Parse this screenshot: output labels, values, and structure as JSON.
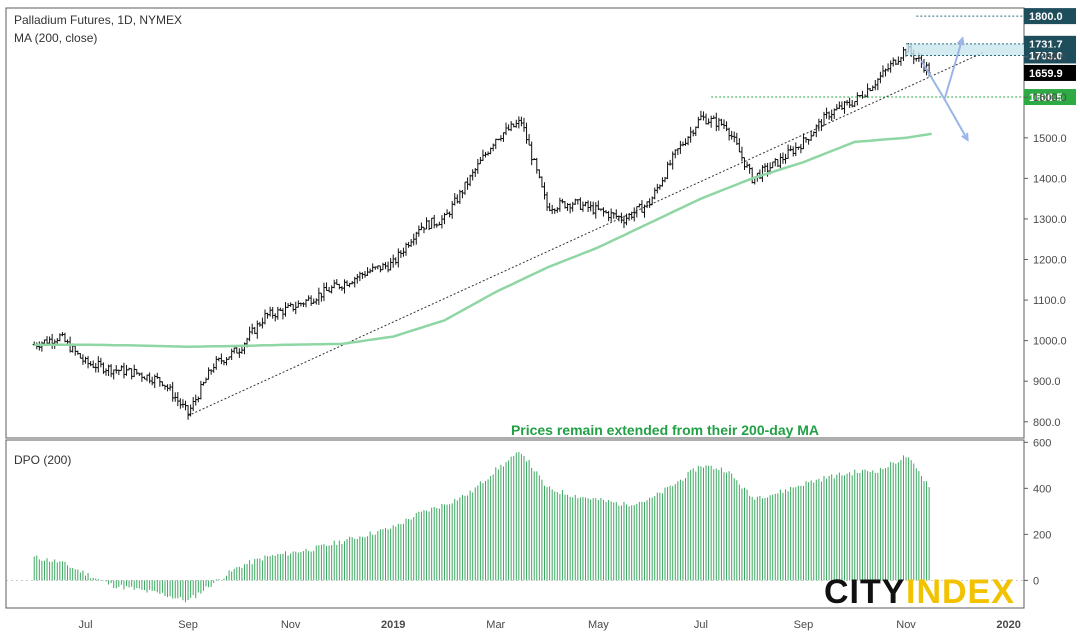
{
  "chart_data": {
    "type": "bar",
    "title": "Palladium Futures, 1D, NYMEX",
    "indicator_label": "MA (200, close)",
    "annotation": "Prices remain extended from their 200-day MA",
    "price_axis": {
      "range": [
        760,
        1820
      ],
      "ticks": [
        "800.0",
        "900.0",
        "1000.0",
        "1100.0",
        "1200.0",
        "1300.0",
        "1400.0",
        "1500.0",
        "1600.0",
        "1700.0"
      ],
      "tick_values": [
        800,
        900,
        1000,
        1100,
        1200,
        1300,
        1400,
        1500,
        1600,
        1700
      ]
    },
    "price_labels": [
      {
        "text": "1800.0",
        "value": 1800,
        "bg": "#1e4d5c"
      },
      {
        "text": "1731.7",
        "value": 1731.7,
        "bg": "#1e4d5c"
      },
      {
        "text": "1703.0",
        "value": 1703.0,
        "bg": "#1e4d5c"
      },
      {
        "text": "1659.9",
        "value": 1659.9,
        "bg": "#000000"
      },
      {
        "text": "1600.5",
        "value": 1600.5,
        "bg": "#2eaa45"
      }
    ],
    "time_axis": {
      "labels": [
        "Jul",
        "Sep",
        "Nov",
        "2019",
        "Mar",
        "May",
        "Jul",
        "Sep",
        "Nov",
        "2020"
      ],
      "months_from_jun2018": [
        1,
        3,
        5,
        7,
        9,
        11,
        13,
        15,
        17,
        19
      ]
    },
    "price_series_monthly_closes": {
      "x_months": [
        0,
        0.5,
        1,
        1.5,
        2,
        2.5,
        3,
        3.5,
        4,
        4.5,
        5,
        5.5,
        6,
        6.5,
        7,
        7.5,
        8,
        8.5,
        9,
        9.5,
        10,
        10.5,
        11,
        11.5,
        12,
        12.5,
        13,
        13.5,
        14,
        14.5,
        15,
        15.5,
        16,
        16.5,
        17,
        17.5
      ],
      "values": [
        990,
        1010,
        945,
        930,
        920,
        900,
        820,
        940,
        980,
        1060,
        1080,
        1110,
        1140,
        1170,
        1190,
        1280,
        1300,
        1400,
        1500,
        1540,
        1330,
        1340,
        1320,
        1300,
        1340,
        1460,
        1550,
        1530,
        1400,
        1440,
        1490,
        1560,
        1590,
        1650,
        1720,
        1660
      ]
    },
    "ma200": {
      "x_months": [
        0,
        1,
        2,
        3,
        4,
        5,
        6,
        7,
        8,
        9,
        10,
        11,
        12,
        13,
        14,
        15,
        16,
        17,
        17.5
      ],
      "values": [
        990,
        990,
        988,
        985,
        987,
        990,
        992,
        1010,
        1050,
        1120,
        1180,
        1230,
        1290,
        1350,
        1400,
        1440,
        1490,
        1500,
        1510
      ]
    },
    "trendline": {
      "from": {
        "x_month": 3.0,
        "value": 815
      },
      "to": {
        "x_month": 18.5,
        "value": 1710
      }
    },
    "levels": [
      {
        "value": 1800,
        "from_month": 17.2
      },
      {
        "value": 1731.7,
        "from_month": 17.0
      },
      {
        "value": 1703.0,
        "from_month": 17.0
      },
      {
        "value": 1600.5,
        "from_month": 13.2,
        "color": "#2eaa45"
      }
    ],
    "dpo": {
      "label": "DPO (200)",
      "range": [
        -120,
        610
      ],
      "ticks": [
        "0",
        "200",
        "400",
        "600"
      ],
      "tick_values": [
        0,
        200,
        400,
        600
      ],
      "x_months": [
        0,
        0.5,
        1,
        1.5,
        2,
        2.5,
        3,
        3.5,
        4,
        4.5,
        5,
        5.5,
        6,
        6.5,
        7,
        7.5,
        8,
        8.5,
        9,
        9.5,
        10,
        10.5,
        11,
        11.5,
        12,
        12.5,
        13,
        13.5,
        14,
        14.5,
        15,
        15.5,
        16,
        16.5,
        17,
        17.5
      ],
      "values": [
        100,
        80,
        30,
        -20,
        -40,
        -60,
        -90,
        -10,
        60,
        100,
        120,
        140,
        170,
        200,
        230,
        290,
        330,
        380,
        480,
        560,
        400,
        370,
        350,
        330,
        350,
        420,
        500,
        480,
        360,
        380,
        420,
        450,
        470,
        480,
        540,
        400
      ]
    }
  },
  "branding": {
    "logo_text_a": "CITY",
    "logo_text_b": "INDEX",
    "colors": {
      "a": "#111111",
      "b": "#f2c200"
    }
  },
  "colors": {
    "bars": "#111111",
    "ma": "#8fd6a5",
    "dpo": "#3aa860",
    "level": "#2e6b7a",
    "arrow": "#9ab5e8"
  }
}
